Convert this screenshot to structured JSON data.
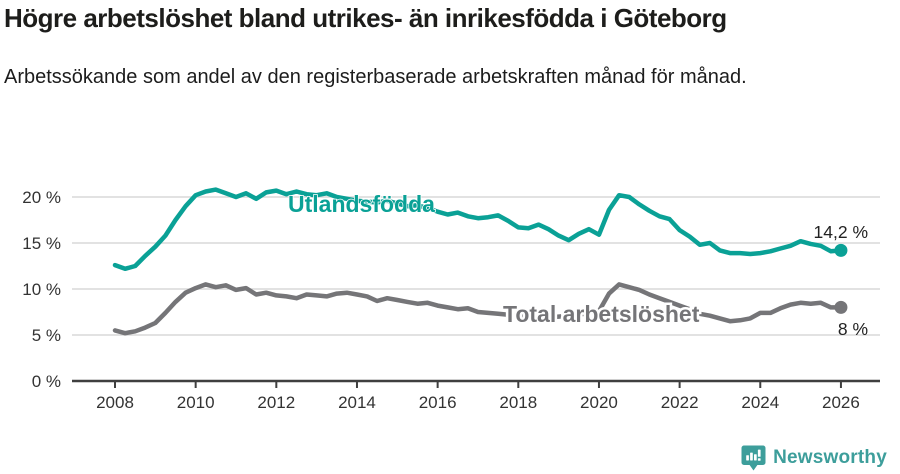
{
  "header": {
    "title": "Högre arbetslöshet bland utrikes- än inrikesfödda i Göteborg",
    "subtitle": "Arbetssökande som andel av den registerbaserade arbetskraften månad för månad."
  },
  "footer": {
    "brand": "Newsworthy"
  },
  "colors": {
    "accent_teal": "#0aa196",
    "series_gray": "#757578",
    "grid": "#d9d9d9",
    "axis": "#3f3f3f",
    "tick_text": "#333333",
    "value_label_text": "#222222",
    "logo_teal": "#3d9e9b"
  },
  "chart_data": {
    "type": "line",
    "title": "Högre arbetslöshet bland utrikes- än inrikesfödda i Göteborg",
    "subtitle": "Arbetssökande som andel av den registerbaserade arbetskraften månad för månad.",
    "xlim": [
      2007,
      2027
    ],
    "ylim": [
      0,
      24
    ],
    "grid": "horizontal-only",
    "legend_position": "inline-on-line",
    "x_ticks": [
      2008,
      2010,
      2012,
      2014,
      2016,
      2018,
      2020,
      2022,
      2024,
      2026
    ],
    "y_ticks": [
      {
        "value": 0,
        "label": "0 %"
      },
      {
        "value": 5,
        "label": "5 %"
      },
      {
        "value": 10,
        "label": "10 %"
      },
      {
        "value": 15,
        "label": "15 %"
      },
      {
        "value": 20,
        "label": "20 %"
      }
    ],
    "series": [
      {
        "name": "Utlandsfödda",
        "color": "#0aa196",
        "end_label": "14,2 %",
        "end_value": 14.2,
        "points": [
          [
            2008,
            12.6
          ],
          [
            2008.25,
            12.2
          ],
          [
            2008.5,
            12.5
          ],
          [
            2008.75,
            13.6
          ],
          [
            2009,
            14.6
          ],
          [
            2009.25,
            15.8
          ],
          [
            2009.5,
            17.5
          ],
          [
            2009.75,
            19.0
          ],
          [
            2010,
            20.2
          ],
          [
            2010.25,
            20.6
          ],
          [
            2010.5,
            20.8
          ],
          [
            2010.75,
            20.4
          ],
          [
            2011,
            20.0
          ],
          [
            2011.25,
            20.4
          ],
          [
            2011.5,
            19.8
          ],
          [
            2011.75,
            20.5
          ],
          [
            2012,
            20.7
          ],
          [
            2012.25,
            20.3
          ],
          [
            2012.5,
            20.6
          ],
          [
            2012.75,
            20.3
          ],
          [
            2013,
            20.2
          ],
          [
            2013.25,
            20.4
          ],
          [
            2013.5,
            20.0
          ],
          [
            2013.75,
            19.8
          ],
          [
            2014,
            19.6
          ],
          [
            2014.25,
            19.5
          ],
          [
            2014.5,
            19.4
          ],
          [
            2014.75,
            19.6
          ],
          [
            2015,
            19.3
          ],
          [
            2015.25,
            19.0
          ],
          [
            2015.5,
            19.1
          ],
          [
            2015.75,
            18.8
          ],
          [
            2016,
            18.4
          ],
          [
            2016.25,
            18.1
          ],
          [
            2016.5,
            18.3
          ],
          [
            2016.75,
            17.9
          ],
          [
            2017,
            17.7
          ],
          [
            2017.25,
            17.8
          ],
          [
            2017.5,
            18.0
          ],
          [
            2017.75,
            17.4
          ],
          [
            2018,
            16.7
          ],
          [
            2018.25,
            16.6
          ],
          [
            2018.5,
            17.0
          ],
          [
            2018.75,
            16.5
          ],
          [
            2019,
            15.8
          ],
          [
            2019.25,
            15.3
          ],
          [
            2019.5,
            16.0
          ],
          [
            2019.75,
            16.5
          ],
          [
            2020,
            15.9
          ],
          [
            2020.25,
            18.6
          ],
          [
            2020.5,
            20.2
          ],
          [
            2020.75,
            20.0
          ],
          [
            2021,
            19.2
          ],
          [
            2021.25,
            18.5
          ],
          [
            2021.5,
            17.9
          ],
          [
            2021.75,
            17.6
          ],
          [
            2022,
            16.4
          ],
          [
            2022.25,
            15.7
          ],
          [
            2022.5,
            14.8
          ],
          [
            2022.75,
            15.0
          ],
          [
            2023,
            14.2
          ],
          [
            2023.25,
            13.9
          ],
          [
            2023.5,
            13.9
          ],
          [
            2023.75,
            13.8
          ],
          [
            2024,
            13.9
          ],
          [
            2024.25,
            14.1
          ],
          [
            2024.5,
            14.4
          ],
          [
            2024.75,
            14.7
          ],
          [
            2025,
            15.2
          ],
          [
            2025.25,
            14.9
          ],
          [
            2025.5,
            14.7
          ],
          [
            2025.75,
            14.1
          ],
          [
            2026,
            14.2
          ]
        ]
      },
      {
        "name": "Total arbetslöshet",
        "color": "#757578",
        "end_label": "8 %",
        "end_value": 8.0,
        "points": [
          [
            2008,
            5.5
          ],
          [
            2008.25,
            5.2
          ],
          [
            2008.5,
            5.4
          ],
          [
            2008.75,
            5.8
          ],
          [
            2009,
            6.3
          ],
          [
            2009.25,
            7.4
          ],
          [
            2009.5,
            8.6
          ],
          [
            2009.75,
            9.6
          ],
          [
            2010,
            10.1
          ],
          [
            2010.25,
            10.5
          ],
          [
            2010.5,
            10.2
          ],
          [
            2010.75,
            10.4
          ],
          [
            2011,
            9.9
          ],
          [
            2011.25,
            10.1
          ],
          [
            2011.5,
            9.4
          ],
          [
            2011.75,
            9.6
          ],
          [
            2012,
            9.3
          ],
          [
            2012.25,
            9.2
          ],
          [
            2012.5,
            9.0
          ],
          [
            2012.75,
            9.4
          ],
          [
            2013,
            9.3
          ],
          [
            2013.25,
            9.2
          ],
          [
            2013.5,
            9.5
          ],
          [
            2013.75,
            9.6
          ],
          [
            2014,
            9.4
          ],
          [
            2014.25,
            9.2
          ],
          [
            2014.5,
            8.7
          ],
          [
            2014.75,
            9.0
          ],
          [
            2015,
            8.8
          ],
          [
            2015.25,
            8.6
          ],
          [
            2015.5,
            8.4
          ],
          [
            2015.75,
            8.5
          ],
          [
            2016,
            8.2
          ],
          [
            2016.25,
            8.0
          ],
          [
            2016.5,
            7.8
          ],
          [
            2016.75,
            7.9
          ],
          [
            2017,
            7.5
          ],
          [
            2017.25,
            7.4
          ],
          [
            2017.5,
            7.3
          ],
          [
            2017.75,
            7.2
          ],
          [
            2018,
            7.1
          ],
          [
            2018.25,
            7.0
          ],
          [
            2018.5,
            7.0
          ],
          [
            2018.75,
            6.9
          ],
          [
            2019,
            7.0
          ],
          [
            2019.25,
            7.1
          ],
          [
            2019.5,
            7.2
          ],
          [
            2019.75,
            7.4
          ],
          [
            2020,
            7.6
          ],
          [
            2020.25,
            9.5
          ],
          [
            2020.5,
            10.5
          ],
          [
            2020.75,
            10.2
          ],
          [
            2021,
            9.9
          ],
          [
            2021.25,
            9.4
          ],
          [
            2021.5,
            9.0
          ],
          [
            2021.75,
            8.6
          ],
          [
            2022,
            8.2
          ],
          [
            2022.25,
            7.8
          ],
          [
            2022.5,
            7.3
          ],
          [
            2022.75,
            7.1
          ],
          [
            2023,
            6.8
          ],
          [
            2023.25,
            6.5
          ],
          [
            2023.5,
            6.6
          ],
          [
            2023.75,
            6.8
          ],
          [
            2024,
            7.4
          ],
          [
            2024.25,
            7.4
          ],
          [
            2024.5,
            7.9
          ],
          [
            2024.75,
            8.3
          ],
          [
            2025,
            8.5
          ],
          [
            2025.25,
            8.4
          ],
          [
            2025.5,
            8.5
          ],
          [
            2025.75,
            8.0
          ],
          [
            2026,
            8.0
          ]
        ]
      }
    ]
  }
}
